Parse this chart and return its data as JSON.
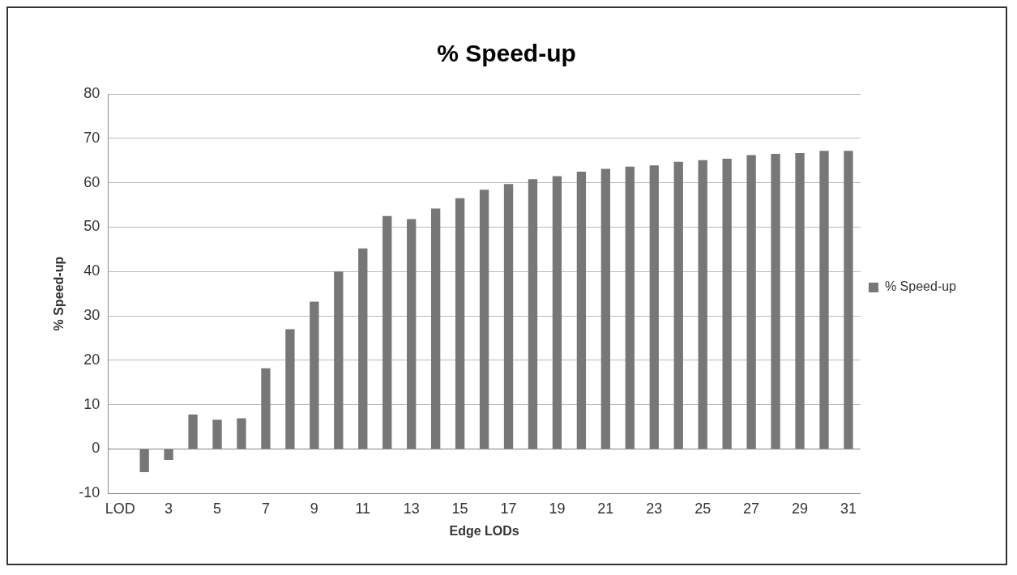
{
  "chart_data": {
    "type": "bar",
    "title": "% Speed-up",
    "xlabel": "Edge LODs",
    "ylabel": "% Speed-up",
    "categories": [
      "LOD",
      null,
      "3",
      null,
      "5",
      null,
      "7",
      null,
      "9",
      null,
      "11",
      null,
      "13",
      null,
      "15",
      null,
      "17",
      null,
      "19",
      null,
      "21",
      null,
      "23",
      null,
      "25",
      null,
      "27",
      null,
      "29",
      null,
      "31"
    ],
    "series": [
      {
        "name": "% Speed-up",
        "color": "#777777",
        "values": [
          0,
          -5.2,
          -2.5,
          7.8,
          6.6,
          6.9,
          18.2,
          27,
          33.2,
          40,
          45.2,
          52.5,
          51.8,
          54.2,
          56.5,
          58.4,
          59.7,
          60.8,
          61.5,
          62.5,
          63.1,
          63.6,
          63.9,
          64.7,
          65.1,
          65.4,
          66.2,
          66.5,
          66.7,
          67.2,
          67.2
        ]
      }
    ],
    "ylim": [
      -10,
      80
    ],
    "yticks": [
      -10,
      0,
      10,
      20,
      30,
      40,
      50,
      60,
      70,
      80
    ],
    "grid": "y",
    "legend": "right"
  }
}
